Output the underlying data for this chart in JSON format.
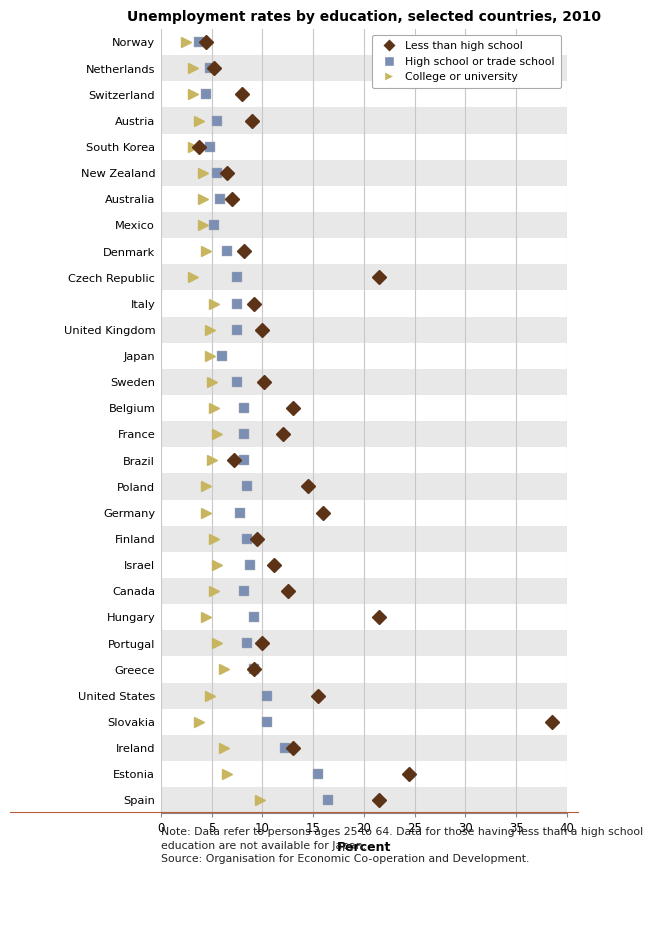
{
  "title": "Unemployment rates by education, selected countries, 2010",
  "countries": [
    "Norway",
    "Netherlands",
    "Switzerland",
    "Austria",
    "South Korea",
    "New Zealand",
    "Australia",
    "Mexico",
    "Denmark",
    "Czech Republic",
    "Italy",
    "United Kingdom",
    "Japan",
    "Sweden",
    "Belgium",
    "France",
    "Brazil",
    "Poland",
    "Germany",
    "Finland",
    "Israel",
    "Canada",
    "Hungary",
    "Portugal",
    "Greece",
    "United States",
    "Slovakia",
    "Ireland",
    "Estonia",
    "Spain"
  ],
  "less_than_hs": [
    4.5,
    5.2,
    8.0,
    9.0,
    3.8,
    6.5,
    7.0,
    null,
    8.2,
    21.5,
    9.2,
    10.0,
    null,
    10.2,
    13.0,
    12.0,
    7.2,
    14.5,
    16.0,
    9.5,
    11.2,
    12.5,
    21.5,
    10.0,
    9.2,
    15.5,
    38.5,
    13.0,
    24.5,
    21.5
  ],
  "high_school": [
    3.8,
    4.8,
    4.5,
    5.5,
    4.8,
    5.5,
    5.8,
    5.2,
    6.5,
    7.5,
    7.5,
    7.5,
    6.0,
    7.5,
    8.2,
    8.2,
    8.2,
    8.5,
    7.8,
    8.5,
    8.8,
    8.2,
    9.2,
    8.5,
    9.2,
    10.5,
    10.5,
    12.2,
    15.5,
    16.5
  ],
  "college": [
    2.5,
    3.2,
    3.2,
    3.8,
    3.2,
    4.2,
    4.2,
    4.2,
    4.5,
    3.2,
    5.2,
    4.8,
    4.8,
    5.0,
    5.2,
    5.5,
    5.0,
    4.5,
    4.5,
    5.2,
    5.5,
    5.2,
    4.5,
    5.5,
    6.2,
    4.8,
    3.8,
    6.2,
    6.5,
    9.8
  ],
  "color_less_hs": "#5C3317",
  "color_hs": "#7B8FB5",
  "color_college": "#C8B560",
  "xlim": [
    0,
    40
  ],
  "xticks": [
    0,
    5,
    10,
    15,
    20,
    25,
    30,
    35,
    40
  ],
  "xlabel": "Percent",
  "note_line1": "Note: Data refer to persons ages 25 to 64. Data for those having less than a high school",
  "note_line2": "education are not available for Japan.",
  "note_line3": "Source: Organisation for Economic Co-operation and Development.",
  "row_colors": [
    "#FFFFFF",
    "#E8E8E8"
  ],
  "grid_color": "#C8C8C8",
  "separator_color": "#B85C3A"
}
